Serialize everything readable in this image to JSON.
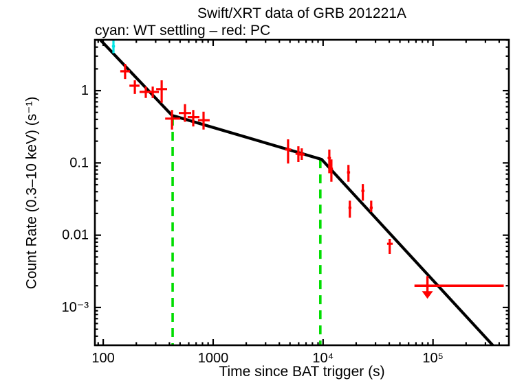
{
  "colors": {
    "pc": "#ff0000",
    "wt": "#00e6e6",
    "model": "#000000",
    "break_line": "#00dd00",
    "background": "#ffffff"
  },
  "chart_data": {
    "type": "scatter",
    "title": "Swift/XRT data of GRB 201221A",
    "subtitle": "cyan: WT settling – red: PC",
    "xlabel": "Time since BAT trigger (s)",
    "ylabel": "Count Rate (0.3–10 keV) (s⁻¹)",
    "xscale": "log",
    "yscale": "log",
    "xlim": [
      84,
      490000
    ],
    "ylim": [
      0.0003,
      5.05
    ],
    "grid": false,
    "legend_position": "none",
    "x_major_ticks": [
      {
        "value": 100,
        "label": "100"
      },
      {
        "value": 1000,
        "label": "1000"
      },
      {
        "value": 10000,
        "label": "10⁴"
      },
      {
        "value": 100000,
        "label": "10⁵"
      }
    ],
    "y_major_ticks": [
      {
        "value": 1,
        "label": "1"
      },
      {
        "value": 0.1,
        "label": "0.1"
      },
      {
        "value": 0.01,
        "label": "0.01"
      },
      {
        "value": 0.001,
        "label": "10⁻³"
      }
    ],
    "series": [
      {
        "name": "WT settling",
        "color_key": "wt",
        "points": [
          {
            "t": 124,
            "t_lo": 120,
            "t_hi": 128,
            "rate": 4.1,
            "rate_lo": 3.3,
            "rate_hi": 5.0
          }
        ]
      },
      {
        "name": "PC",
        "color_key": "pc",
        "points": [
          {
            "t": 158,
            "t_lo": 143,
            "t_hi": 175,
            "rate": 1.85,
            "rate_lo": 1.45,
            "rate_hi": 2.35
          },
          {
            "t": 194,
            "t_lo": 173,
            "t_hi": 214,
            "rate": 1.17,
            "rate_lo": 0.9,
            "rate_hi": 1.39
          },
          {
            "t": 244,
            "t_lo": 214,
            "t_hi": 270,
            "rate": 0.96,
            "rate_lo": 0.79,
            "rate_hi": 1.14
          },
          {
            "t": 282,
            "t_lo": 255,
            "t_hi": 321,
            "rate": 0.96,
            "rate_lo": 0.79,
            "rate_hi": 1.14
          },
          {
            "t": 340,
            "t_lo": 303,
            "t_hi": 381,
            "rate": 1.05,
            "rate_lo": 0.68,
            "rate_hi": 1.39
          },
          {
            "t": 422,
            "t_lo": 366,
            "t_hi": 501,
            "rate": 0.41,
            "rate_lo": 0.29,
            "rate_hi": 0.54
          },
          {
            "t": 554,
            "t_lo": 487,
            "t_hi": 631,
            "rate": 0.49,
            "rate_lo": 0.37,
            "rate_hi": 0.65
          },
          {
            "t": 659,
            "t_lo": 586,
            "t_hi": 750,
            "rate": 0.43,
            "rate_lo": 0.32,
            "rate_hi": 0.54
          },
          {
            "t": 818,
            "t_lo": 728,
            "t_hi": 930,
            "rate": 0.39,
            "rate_lo": 0.29,
            "rate_hi": 0.51
          },
          {
            "t": 4800,
            "t_lo": 4530,
            "t_hi": 5140,
            "rate": 0.153,
            "rate_lo": 0.098,
            "rate_hi": 0.212
          },
          {
            "t": 5960,
            "t_lo": 5620,
            "t_hi": 6310,
            "rate": 0.134,
            "rate_lo": 0.103,
            "rate_hi": 0.17
          },
          {
            "t": 6400,
            "t_lo": 6000,
            "t_hi": 6800,
            "rate": 0.131,
            "rate_lo": 0.11,
            "rate_hi": 0.159
          },
          {
            "t": 11400,
            "t_lo": 11000,
            "t_hi": 11800,
            "rate": 0.117,
            "rate_lo": 0.072,
            "rate_hi": 0.153
          },
          {
            "t": 11900,
            "t_lo": 11500,
            "t_hi": 12300,
            "rate": 0.083,
            "rate_lo": 0.055,
            "rate_hi": 0.112
          },
          {
            "t": 17000,
            "t_lo": 16500,
            "t_hi": 17600,
            "rate": 0.074,
            "rate_lo": 0.055,
            "rate_hi": 0.094
          },
          {
            "t": 17500,
            "t_lo": 17000,
            "t_hi": 18100,
            "rate": 0.024,
            "rate_lo": 0.0175,
            "rate_hi": 0.03
          },
          {
            "t": 23000,
            "t_lo": 22300,
            "t_hi": 23800,
            "rate": 0.041,
            "rate_lo": 0.03,
            "rate_hi": 0.051
          },
          {
            "t": 27400,
            "t_lo": 26600,
            "t_hi": 28300,
            "rate": 0.024,
            "rate_lo": 0.021,
            "rate_hi": 0.03
          },
          {
            "t": 40400,
            "t_lo": 38200,
            "t_hi": 43000,
            "rate": 0.0076,
            "rate_lo": 0.0055,
            "rate_hi": 0.0089
          }
        ]
      }
    ],
    "upper_limit": {
      "t": 89000,
      "t_lo": 67800,
      "t_hi": 440000,
      "rate": 0.002
    },
    "model": {
      "vertices": [
        {
          "t": 94,
          "rate": 5.05
        },
        {
          "t": 422,
          "rate": 0.455
        },
        {
          "t": 9700,
          "rate": 0.112
        },
        {
          "t": 350000,
          "rate": 0.0003
        }
      ]
    },
    "break_lines": [
      {
        "t": 428,
        "rate_top": 0.436
      },
      {
        "t": 9440,
        "rate_top": 0.112
      }
    ]
  }
}
